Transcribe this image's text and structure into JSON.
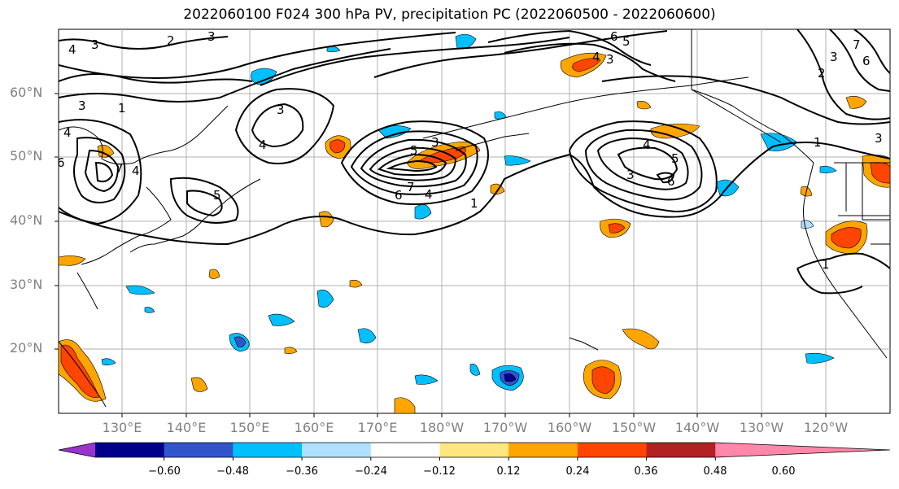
{
  "title": "2022060100 F024 300 hPa PV, precipitation PC (2022060500 - 2022060600)",
  "lat_labels": [
    "60°N",
    "50°N",
    "40°N",
    "30°N",
    "20°N"
  ],
  "lon_labels": [
    "130°E",
    "140°E",
    "150°E",
    "160°E",
    "170°E",
    "180°W",
    "170°W",
    "160°W",
    "150°W",
    "140°W",
    "130°W",
    "120°W"
  ],
  "colorbar": {
    "colors": [
      "#9933cc",
      "#00008b",
      "#3355cc",
      "#00bfff",
      "#b0e0ff",
      "#ffffff",
      "#ffe680",
      "#ffa500",
      "#ff4500",
      "#b22222",
      "#ff88aa"
    ],
    "tick_labels": [
      "−0.60",
      "−0.48",
      "−0.36",
      "−0.24",
      "−0.12",
      "0.12",
      "0.24",
      "0.36",
      "0.48",
      "0.60"
    ]
  },
  "contour_labels": [
    "1",
    "2",
    "3",
    "4",
    "5",
    "6",
    "7"
  ],
  "colors": {
    "land_line": "#000000",
    "grid": "#b0b0b0",
    "contour": "#000000"
  }
}
